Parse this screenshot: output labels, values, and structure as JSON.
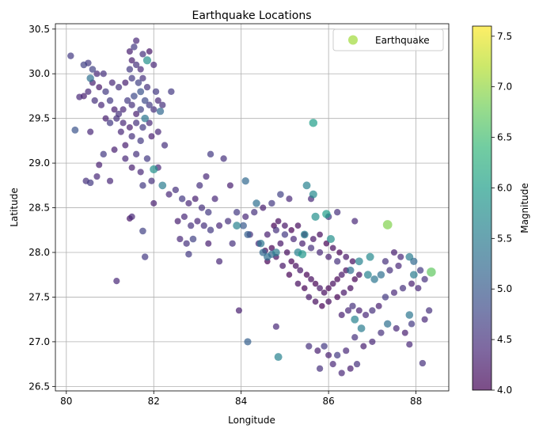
{
  "chart_data": {
    "type": "scatter",
    "title": "Earthquake Locations",
    "xlabel": "Longitude",
    "ylabel": "Latitude",
    "xlim": [
      79.75,
      88.75
    ],
    "ylim": [
      26.45,
      30.56
    ],
    "xticks": [
      80,
      82,
      84,
      86,
      88
    ],
    "yticks": [
      26.5,
      27.0,
      27.5,
      28.0,
      28.5,
      29.0,
      29.5,
      30.0,
      30.5
    ],
    "xtick_labels": [
      "80",
      "82",
      "84",
      "86",
      "88"
    ],
    "ytick_labels": [
      "26.5",
      "27.0",
      "27.5",
      "28.0",
      "28.5",
      "29.0",
      "29.5",
      "30.0",
      "30.5"
    ],
    "grid": true,
    "legend": {
      "position": "top-right",
      "entries": [
        {
          "label": "Earthquake",
          "color": "#a0da39"
        }
      ]
    },
    "colorbar": {
      "label": "Magnitude",
      "range": [
        4.0,
        7.6
      ],
      "ticks": [
        4.0,
        4.5,
        5.0,
        5.5,
        6.0,
        6.5,
        7.0,
        7.5
      ],
      "tick_labels": [
        "4.0",
        "4.5",
        "5.0",
        "5.5",
        "6.0",
        "6.5",
        "7.0",
        "7.5"
      ],
      "colormap": "viridis"
    },
    "marker_alpha": 0.7,
    "points": [
      [
        80.1,
        30.2,
        4.6
      ],
      [
        80.4,
        30.1,
        4.7
      ],
      [
        80.5,
        30.12,
        4.6
      ],
      [
        80.6,
        30.05,
        4.7
      ],
      [
        80.55,
        29.95,
        5.3
      ],
      [
        80.7,
        30.0,
        4.4
      ],
      [
        80.85,
        30.0,
        4.5
      ],
      [
        80.6,
        29.9,
        4.3
      ],
      [
        80.75,
        29.85,
        4.2
      ],
      [
        80.9,
        29.8,
        4.6
      ],
      [
        80.5,
        29.8,
        4.4
      ],
      [
        80.4,
        29.75,
        4.3
      ],
      [
        80.65,
        29.7,
        4.5
      ],
      [
        80.8,
        29.65,
        4.4
      ],
      [
        81.0,
        29.7,
        4.6
      ],
      [
        81.1,
        29.6,
        4.3
      ],
      [
        81.2,
        29.55,
        4.5
      ],
      [
        81.3,
        29.6,
        4.4
      ],
      [
        81.4,
        29.7,
        4.6
      ],
      [
        81.5,
        29.65,
        4.5
      ],
      [
        81.6,
        29.55,
        4.3
      ],
      [
        81.7,
        29.6,
        4.7
      ],
      [
        81.8,
        29.7,
        4.8
      ],
      [
        81.9,
        29.65,
        4.6
      ],
      [
        82.0,
        29.6,
        4.5
      ],
      [
        82.15,
        29.58,
        5.2
      ],
      [
        81.05,
        29.9,
        4.4
      ],
      [
        81.2,
        29.85,
        4.5
      ],
      [
        81.35,
        29.9,
        4.3
      ],
      [
        81.5,
        29.95,
        4.6
      ],
      [
        81.65,
        29.9,
        4.7
      ],
      [
        81.75,
        29.95,
        4.5
      ],
      [
        81.55,
        30.3,
        4.6
      ],
      [
        81.45,
        30.25,
        4.3
      ],
      [
        81.6,
        30.37,
        4.4
      ],
      [
        81.75,
        30.22,
        4.5
      ],
      [
        81.85,
        30.15,
        5.8
      ],
      [
        81.7,
        30.05,
        4.4
      ],
      [
        81.6,
        30.1,
        4.5
      ],
      [
        81.45,
        30.05,
        4.6
      ],
      [
        81.5,
        30.15,
        4.3
      ],
      [
        81.9,
        30.25,
        4.2
      ],
      [
        82.0,
        30.1,
        4.4
      ],
      [
        81.55,
        29.75,
        4.8
      ],
      [
        81.7,
        29.8,
        4.9
      ],
      [
        81.85,
        29.85,
        4.5
      ],
      [
        82.05,
        29.8,
        4.6
      ],
      [
        82.1,
        29.7,
        4.4
      ],
      [
        82.2,
        29.65,
        4.5
      ],
      [
        82.4,
        29.8,
        4.6
      ],
      [
        81.8,
        29.5,
        5.4
      ],
      [
        81.9,
        29.45,
        4.4
      ],
      [
        81.75,
        29.4,
        4.6
      ],
      [
        81.6,
        29.45,
        4.5
      ],
      [
        81.45,
        29.4,
        4.3
      ],
      [
        81.3,
        29.45,
        4.4
      ],
      [
        81.15,
        29.5,
        4.5
      ],
      [
        81.0,
        29.45,
        4.6
      ],
      [
        80.9,
        29.5,
        4.3
      ],
      [
        81.25,
        29.35,
        4.4
      ],
      [
        81.5,
        29.3,
        4.5
      ],
      [
        81.7,
        29.25,
        4.6
      ],
      [
        81.95,
        29.3,
        4.3
      ],
      [
        82.1,
        29.35,
        4.4
      ],
      [
        82.25,
        29.2,
        4.5
      ],
      [
        81.35,
        29.2,
        4.3
      ],
      [
        80.55,
        29.35,
        4.4
      ],
      [
        80.2,
        29.37,
        4.9
      ],
      [
        80.3,
        29.74,
        4.4
      ],
      [
        80.85,
        29.1,
        4.6
      ],
      [
        81.1,
        29.15,
        4.3
      ],
      [
        81.35,
        29.05,
        4.4
      ],
      [
        81.6,
        29.1,
        4.5
      ],
      [
        81.85,
        29.05,
        4.6
      ],
      [
        82.1,
        28.95,
        4.4
      ],
      [
        82.0,
        28.93,
        5.8
      ],
      [
        81.5,
        28.95,
        4.3
      ],
      [
        81.7,
        28.9,
        4.4
      ],
      [
        81.95,
        28.8,
        4.5
      ],
      [
        81.75,
        28.75,
        4.6
      ],
      [
        80.75,
        28.98,
        4.3
      ],
      [
        80.7,
        28.85,
        4.4
      ],
      [
        80.45,
        28.8,
        4.5
      ],
      [
        80.55,
        28.78,
        4.6
      ],
      [
        81.0,
        28.8,
        4.4
      ],
      [
        82.2,
        28.75,
        5.5
      ],
      [
        82.35,
        28.65,
        4.4
      ],
      [
        82.0,
        28.55,
        4.3
      ],
      [
        81.5,
        28.4,
        4.4
      ],
      [
        81.45,
        28.38,
        4.2
      ],
      [
        81.75,
        28.24,
        4.7
      ],
      [
        81.8,
        27.95,
        4.6
      ],
      [
        81.15,
        27.68,
        4.4
      ],
      [
        82.5,
        28.7,
        4.5
      ],
      [
        82.65,
        28.6,
        4.6
      ],
      [
        82.8,
        28.55,
        4.4
      ],
      [
        82.95,
        28.6,
        4.3
      ],
      [
        83.1,
        28.5,
        4.5
      ],
      [
        83.25,
        28.45,
        4.6
      ],
      [
        82.7,
        28.4,
        4.4
      ],
      [
        82.55,
        28.35,
        4.3
      ],
      [
        82.85,
        28.3,
        4.5
      ],
      [
        82.9,
        28.15,
        4.7
      ],
      [
        82.6,
        28.15,
        4.4
      ],
      [
        82.75,
        28.1,
        4.5
      ],
      [
        82.8,
        27.98,
        4.6
      ],
      [
        83.0,
        28.35,
        4.4
      ],
      [
        83.15,
        28.3,
        4.5
      ],
      [
        83.3,
        28.25,
        4.6
      ],
      [
        83.5,
        28.3,
        4.4
      ],
      [
        83.7,
        28.35,
        4.5
      ],
      [
        83.9,
        28.45,
        4.6
      ],
      [
        84.1,
        28.4,
        4.4
      ],
      [
        84.3,
        28.45,
        4.5
      ],
      [
        84.5,
        28.5,
        4.3
      ],
      [
        84.7,
        28.55,
        4.6
      ],
      [
        84.9,
        28.65,
        4.7
      ],
      [
        85.1,
        28.6,
        4.4
      ],
      [
        83.25,
        28.1,
        4.3
      ],
      [
        83.5,
        27.9,
        4.4
      ],
      [
        83.8,
        28.1,
        4.5
      ],
      [
        83.95,
        27.35,
        4.3
      ],
      [
        83.4,
        28.6,
        4.4
      ],
      [
        83.05,
        28.75,
        4.5
      ],
      [
        83.3,
        29.1,
        4.6
      ],
      [
        83.6,
        29.05,
        4.5
      ],
      [
        83.2,
        28.85,
        4.4
      ],
      [
        83.75,
        28.75,
        4.3
      ],
      [
        84.1,
        28.8,
        5.2
      ],
      [
        84.35,
        28.55,
        5.3
      ],
      [
        84.2,
        28.2,
        4.5
      ],
      [
        84.4,
        28.1,
        4.4
      ],
      [
        84.6,
        28.2,
        4.3
      ],
      [
        84.8,
        28.25,
        4.5
      ],
      [
        85.0,
        28.2,
        4.6
      ],
      [
        85.2,
        28.15,
        4.4
      ],
      [
        85.4,
        28.1,
        4.3
      ],
      [
        85.6,
        28.05,
        4.5
      ],
      [
        85.8,
        28.0,
        4.4
      ],
      [
        86.0,
        27.95,
        4.3
      ],
      [
        86.2,
        27.9,
        4.5
      ],
      [
        84.9,
        28.1,
        4.2
      ],
      [
        85.05,
        28.0,
        4.1
      ],
      [
        85.15,
        27.9,
        4.0
      ],
      [
        85.25,
        27.85,
        4.1
      ],
      [
        85.35,
        27.8,
        4.2
      ],
      [
        85.5,
        27.75,
        4.0
      ],
      [
        85.6,
        27.7,
        4.1
      ],
      [
        85.7,
        27.65,
        4.0
      ],
      [
        85.8,
        27.6,
        4.2
      ],
      [
        85.9,
        27.55,
        4.1
      ],
      [
        86.0,
        27.6,
        4.0
      ],
      [
        86.1,
        27.65,
        4.1
      ],
      [
        86.2,
        27.7,
        4.0
      ],
      [
        86.3,
        27.75,
        4.2
      ],
      [
        86.4,
        27.8,
        4.1
      ],
      [
        84.7,
        28.05,
        4.0
      ],
      [
        84.8,
        27.95,
        4.1
      ],
      [
        84.95,
        27.85,
        4.2
      ],
      [
        85.1,
        27.75,
        4.0
      ],
      [
        85.3,
        27.65,
        4.1
      ],
      [
        85.45,
        27.6,
        4.0
      ],
      [
        85.55,
        27.5,
        4.2
      ],
      [
        85.7,
        27.45,
        4.1
      ],
      [
        85.85,
        27.4,
        4.0
      ],
      [
        86.0,
        27.45,
        4.1
      ],
      [
        86.2,
        27.5,
        4.0
      ],
      [
        86.35,
        27.55,
        4.2
      ],
      [
        86.5,
        27.6,
        4.1
      ],
      [
        86.6,
        27.7,
        4.0
      ],
      [
        86.7,
        27.75,
        4.1
      ],
      [
        84.75,
        28.3,
        4.0
      ],
      [
        84.85,
        28.35,
        4.1
      ],
      [
        85.0,
        28.3,
        4.2
      ],
      [
        85.15,
        28.25,
        4.0
      ],
      [
        85.3,
        28.3,
        4.1
      ],
      [
        85.45,
        28.2,
        4.0
      ],
      [
        85.65,
        28.15,
        4.2
      ],
      [
        85.8,
        28.2,
        4.1
      ],
      [
        85.95,
        28.1,
        4.0
      ],
      [
        86.1,
        28.05,
        4.1
      ],
      [
        86.25,
        28.0,
        4.0
      ],
      [
        86.4,
        27.95,
        4.2
      ],
      [
        86.55,
        27.9,
        4.1
      ],
      [
        84.6,
        27.9,
        4.0
      ],
      [
        84.55,
        28.02,
        4.1
      ],
      [
        84.7,
        27.98,
        5.2
      ],
      [
        84.8,
        28.0,
        5.5
      ],
      [
        84.6,
        27.95,
        5.3
      ],
      [
        85.3,
        28.0,
        5.6
      ],
      [
        85.4,
        27.98,
        5.9
      ],
      [
        86.5,
        27.8,
        5.3
      ],
      [
        86.7,
        27.9,
        5.6
      ],
      [
        86.3,
        27.3,
        4.3
      ],
      [
        86.45,
        27.35,
        4.4
      ],
      [
        86.55,
        27.4,
        4.5
      ],
      [
        86.7,
        27.35,
        4.3
      ],
      [
        86.85,
        27.3,
        4.4
      ],
      [
        87.0,
        27.35,
        4.5
      ],
      [
        87.15,
        27.4,
        4.3
      ],
      [
        87.3,
        27.5,
        4.6
      ],
      [
        87.5,
        27.55,
        4.4
      ],
      [
        87.7,
        27.6,
        4.5
      ],
      [
        87.9,
        27.65,
        4.3
      ],
      [
        88.05,
        27.6,
        4.4
      ],
      [
        88.2,
        27.7,
        4.5
      ],
      [
        88.35,
        27.78,
        6.7
      ],
      [
        88.1,
        27.8,
        4.6
      ],
      [
        87.95,
        27.9,
        5.2
      ],
      [
        87.85,
        27.95,
        5.5
      ],
      [
        87.6,
        27.85,
        4.4
      ],
      [
        87.4,
        27.8,
        4.5
      ],
      [
        87.2,
        27.75,
        5.3
      ],
      [
        87.05,
        27.7,
        5.4
      ],
      [
        86.9,
        27.75,
        5.6
      ],
      [
        86.95,
        27.95,
        5.7
      ],
      [
        87.3,
        27.9,
        4.5
      ],
      [
        87.5,
        28.0,
        4.3
      ],
      [
        87.65,
        27.95,
        4.4
      ],
      [
        87.95,
        27.75,
        5.5
      ],
      [
        88.2,
        27.25,
        4.4
      ],
      [
        88.3,
        27.35,
        4.5
      ],
      [
        87.85,
        27.3,
        5.4
      ],
      [
        87.9,
        27.2,
        4.6
      ],
      [
        87.75,
        27.1,
        4.3
      ],
      [
        87.55,
        27.15,
        4.4
      ],
      [
        87.35,
        27.2,
        5.3
      ],
      [
        87.2,
        27.1,
        4.5
      ],
      [
        87.0,
        27.0,
        4.4
      ],
      [
        86.8,
        26.95,
        4.3
      ],
      [
        86.6,
        27.05,
        4.5
      ],
      [
        86.4,
        26.9,
        4.4
      ],
      [
        86.2,
        26.85,
        4.6
      ],
      [
        86.0,
        26.85,
        4.3
      ],
      [
        85.8,
        26.7,
        4.5
      ],
      [
        86.3,
        26.65,
        4.4
      ],
      [
        86.5,
        26.7,
        4.3
      ],
      [
        86.65,
        26.75,
        4.5
      ],
      [
        86.1,
        26.75,
        4.4
      ],
      [
        85.55,
        26.95,
        4.5
      ],
      [
        85.75,
        26.9,
        4.3
      ],
      [
        85.9,
        26.95,
        4.6
      ],
      [
        86.6,
        27.25,
        5.6
      ],
      [
        86.75,
        27.15,
        5.5
      ],
      [
        87.85,
        26.97,
        4.4
      ],
      [
        88.15,
        26.76,
        4.5
      ],
      [
        86.6,
        28.35,
        4.4
      ],
      [
        86.2,
        28.45,
        4.5
      ],
      [
        86.0,
        28.4,
        4.6
      ],
      [
        85.6,
        28.6,
        4.4
      ],
      [
        85.7,
        28.4,
        5.8
      ],
      [
        85.95,
        28.43,
        6.0
      ],
      [
        86.05,
        28.15,
        5.8
      ],
      [
        85.45,
        28.2,
        5.6
      ],
      [
        85.65,
        29.45,
        6.0
      ],
      [
        85.5,
        28.75,
        5.6
      ],
      [
        85.65,
        28.65,
        5.7
      ],
      [
        87.35,
        28.31,
        6.9
      ],
      [
        84.85,
        26.83,
        5.6
      ],
      [
        84.45,
        28.1,
        5.4
      ],
      [
        84.5,
        28.0,
        5.2
      ],
      [
        84.05,
        28.3,
        5.0
      ],
      [
        84.15,
        28.2,
        5.1
      ],
      [
        83.9,
        28.3,
        5.6
      ],
      [
        84.8,
        27.17,
        4.4
      ],
      [
        84.15,
        27.0,
        5.1
      ]
    ]
  }
}
